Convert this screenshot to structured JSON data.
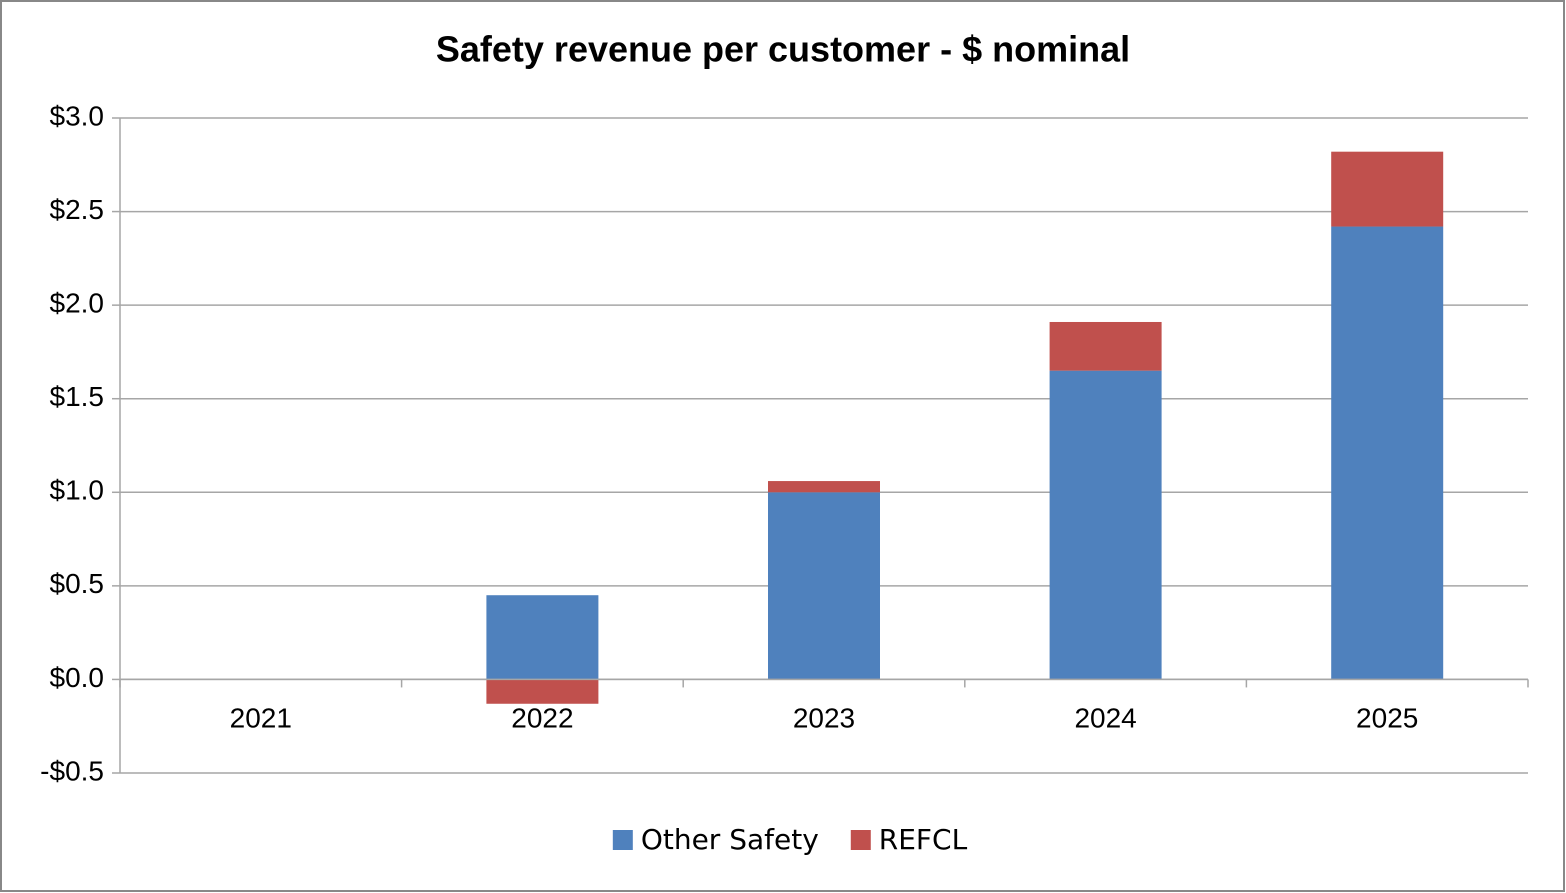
{
  "chart_data": {
    "type": "stacked_bar",
    "title": "Safety revenue per customer - $ nominal",
    "categories": [
      "2021",
      "2022",
      "2023",
      "2024",
      "2025"
    ],
    "series": [
      {
        "name": "Other Safety",
        "color": "#4f81bd",
        "values": [
          0,
          0.45,
          1.0,
          1.65,
          2.42
        ]
      },
      {
        "name": "REFCL",
        "color": "#c0504d",
        "values": [
          0,
          -0.13,
          0.06,
          0.26,
          0.4
        ]
      }
    ],
    "ylim": [
      -0.5,
      3.0
    ],
    "yticks": [
      {
        "value": -0.5,
        "label": "-$0.5"
      },
      {
        "value": 0,
        "label": "$0.0"
      },
      {
        "value": 0.5,
        "label": "$0.5"
      },
      {
        "value": 1.0,
        "label": "$1.0"
      },
      {
        "value": 1.5,
        "label": "$1.5"
      },
      {
        "value": 2.0,
        "label": "$2.0"
      },
      {
        "value": 2.5,
        "label": "$2.5"
      },
      {
        "value": 3.0,
        "label": "$3.0"
      }
    ],
    "grid": true,
    "legend": "bottom"
  }
}
